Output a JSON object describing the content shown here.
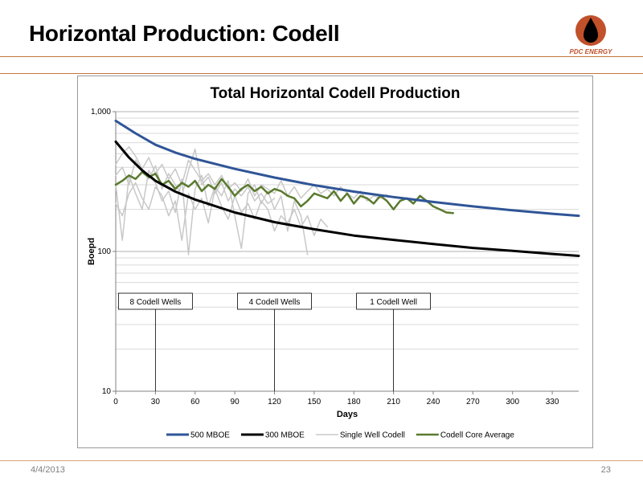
{
  "slide": {
    "title": "Horizontal Production: Codell",
    "footer_date": "4/4/2013",
    "page_number": "23",
    "rule_color": "#c0783f"
  },
  "logo": {
    "text": "PDC ENERGY",
    "circle_color": "#c0512b",
    "drop_color": "#000000"
  },
  "chart_data": {
    "type": "line",
    "title": "Total Horizontal Codell Production",
    "xlabel": "Days",
    "ylabel": "Boepd",
    "xlim": [
      0,
      350
    ],
    "ylim": [
      10,
      1000
    ],
    "yscale": "log",
    "x_ticks": [
      0,
      30,
      60,
      90,
      120,
      150,
      180,
      210,
      240,
      270,
      300,
      330
    ],
    "y_ticks": [
      10,
      100,
      1000
    ],
    "y_tick_labels": [
      "10",
      "100",
      "1,000"
    ],
    "grid": "horizontal log minor",
    "legend": "bottom",
    "series": [
      {
        "name": "500 MBOE",
        "color": "#2f5597",
        "width": 3,
        "dash": "",
        "x": [
          0,
          15,
          30,
          45,
          60,
          90,
          120,
          150,
          180,
          210,
          240,
          270,
          300,
          330,
          350
        ],
        "y": [
          860,
          700,
          580,
          510,
          460,
          390,
          338,
          298,
          268,
          245,
          226,
          210,
          197,
          186,
          180
        ]
      },
      {
        "name": "300 MBOE",
        "color": "#000000",
        "width": 3,
        "dash": "",
        "x": [
          0,
          10,
          20,
          30,
          45,
          60,
          90,
          120,
          150,
          180,
          210,
          240,
          270,
          300,
          330,
          350
        ],
        "y": [
          610,
          470,
          380,
          320,
          268,
          235,
          190,
          162,
          144,
          130,
          121,
          113,
          106,
          101,
          96,
          93
        ]
      },
      {
        "name": "Single Well Codell",
        "color": "#c8c8c8",
        "width": 1.5,
        "dash": "",
        "x": [
          0,
          5,
          10,
          15,
          20,
          25,
          30,
          35,
          40,
          45,
          50,
          55,
          60,
          65,
          70,
          75,
          80,
          85,
          90,
          95,
          100,
          105,
          110,
          115,
          120,
          125,
          130,
          135,
          140,
          145,
          150,
          155,
          160,
          165,
          170,
          175,
          180,
          185,
          190,
          195,
          200,
          205
        ],
        "y": [
          420,
          500,
          560,
          480,
          390,
          470,
          360,
          420,
          330,
          390,
          300,
          450,
          380,
          320,
          360,
          300,
          350,
          280,
          310,
          270,
          330,
          250,
          300,
          280,
          260,
          320,
          250,
          290,
          240,
          270,
          300,
          260,
          280,
          250,
          290,
          260,
          240,
          270,
          230,
          250,
          240,
          255
        ]
      },
      {
        "name": "Single Well Codell",
        "color": "#c8c8c8",
        "width": 1.5,
        "dash": "",
        "x": [
          0,
          5,
          10,
          15,
          20,
          25,
          30,
          35,
          40,
          45,
          50,
          55,
          60,
          65,
          70,
          75,
          80,
          85,
          90,
          95,
          100,
          105,
          110,
          115,
          120,
          125,
          130,
          135,
          140,
          145,
          150,
          155,
          160
        ],
        "y": [
          220,
          180,
          260,
          310,
          240,
          200,
          290,
          250,
          180,
          230,
          120,
          260,
          200,
          240,
          160,
          280,
          210,
          170,
          250,
          190,
          220,
          170,
          230,
          200,
          140,
          180,
          160,
          200,
          150,
          180,
          130,
          170,
          150
        ]
      },
      {
        "name": "Single Well Codell",
        "color": "#c8c8c8",
        "width": 1.5,
        "dash": "",
        "x": [
          0,
          5,
          10,
          15,
          20,
          25,
          30,
          35,
          40,
          45,
          50,
          55,
          60,
          65,
          70,
          75,
          80,
          85,
          90,
          95,
          100,
          105,
          110,
          115,
          120,
          125,
          130,
          135,
          140,
          145
        ],
        "y": [
          300,
          120,
          350,
          260,
          200,
          380,
          310,
          230,
          270,
          190,
          330,
          95,
          280,
          350,
          210,
          290,
          250,
          320,
          180,
          105,
          260,
          300,
          220,
          270,
          200,
          250,
          140,
          230,
          180,
          95
        ]
      },
      {
        "name": "Single Well Codell",
        "color": "#c8c8c8",
        "width": 1.5,
        "dash": "",
        "x": [
          0,
          5,
          10,
          15,
          20,
          25,
          30,
          35,
          40,
          45,
          50,
          55,
          60,
          65,
          70,
          75,
          80,
          85,
          90,
          95,
          100,
          105,
          110,
          115,
          120
        ],
        "y": [
          350,
          400,
          300,
          450,
          380,
          330,
          410,
          280,
          360,
          300,
          250,
          380,
          540,
          300,
          340,
          260,
          310,
          230,
          280,
          250,
          290,
          230,
          260,
          220,
          240
        ]
      },
      {
        "name": "Codell Core Average",
        "color": "#5a7a2e",
        "width": 2.5,
        "dash": "",
        "x": [
          0,
          5,
          10,
          15,
          20,
          25,
          30,
          35,
          40,
          45,
          50,
          55,
          60,
          65,
          70,
          75,
          80,
          85,
          90,
          95,
          100,
          105,
          110,
          115,
          120,
          125,
          130,
          135,
          140,
          145,
          150,
          155,
          160,
          165,
          170,
          175,
          180,
          185,
          190,
          195,
          200,
          205,
          210,
          215,
          220,
          225,
          230,
          235,
          240,
          245,
          250,
          255
        ],
        "y": [
          300,
          320,
          350,
          330,
          370,
          340,
          360,
          300,
          320,
          280,
          310,
          290,
          320,
          270,
          300,
          280,
          330,
          290,
          250,
          280,
          300,
          270,
          290,
          260,
          280,
          270,
          250,
          240,
          210,
          230,
          260,
          250,
          240,
          270,
          230,
          260,
          220,
          250,
          240,
          220,
          250,
          230,
          200,
          230,
          240,
          220,
          250,
          230,
          210,
          200,
          190,
          188
        ]
      }
    ],
    "legend_entries": [
      {
        "name": "500 MBOE",
        "color": "#2f5597",
        "width": 3
      },
      {
        "name": "300 MBOE",
        "color": "#000000",
        "width": 3
      },
      {
        "name": "Single Well Codell",
        "color": "#c8c8c8",
        "width": 1.5
      },
      {
        "name": "Codell Core Average",
        "color": "#5a7a2e",
        "width": 2.5
      }
    ],
    "annotations": [
      {
        "text": "8 Codell Wells",
        "x": 30
      },
      {
        "text": "4 Codell Wells",
        "x": 120
      },
      {
        "text": "1 Codell Well",
        "x": 210
      }
    ]
  }
}
